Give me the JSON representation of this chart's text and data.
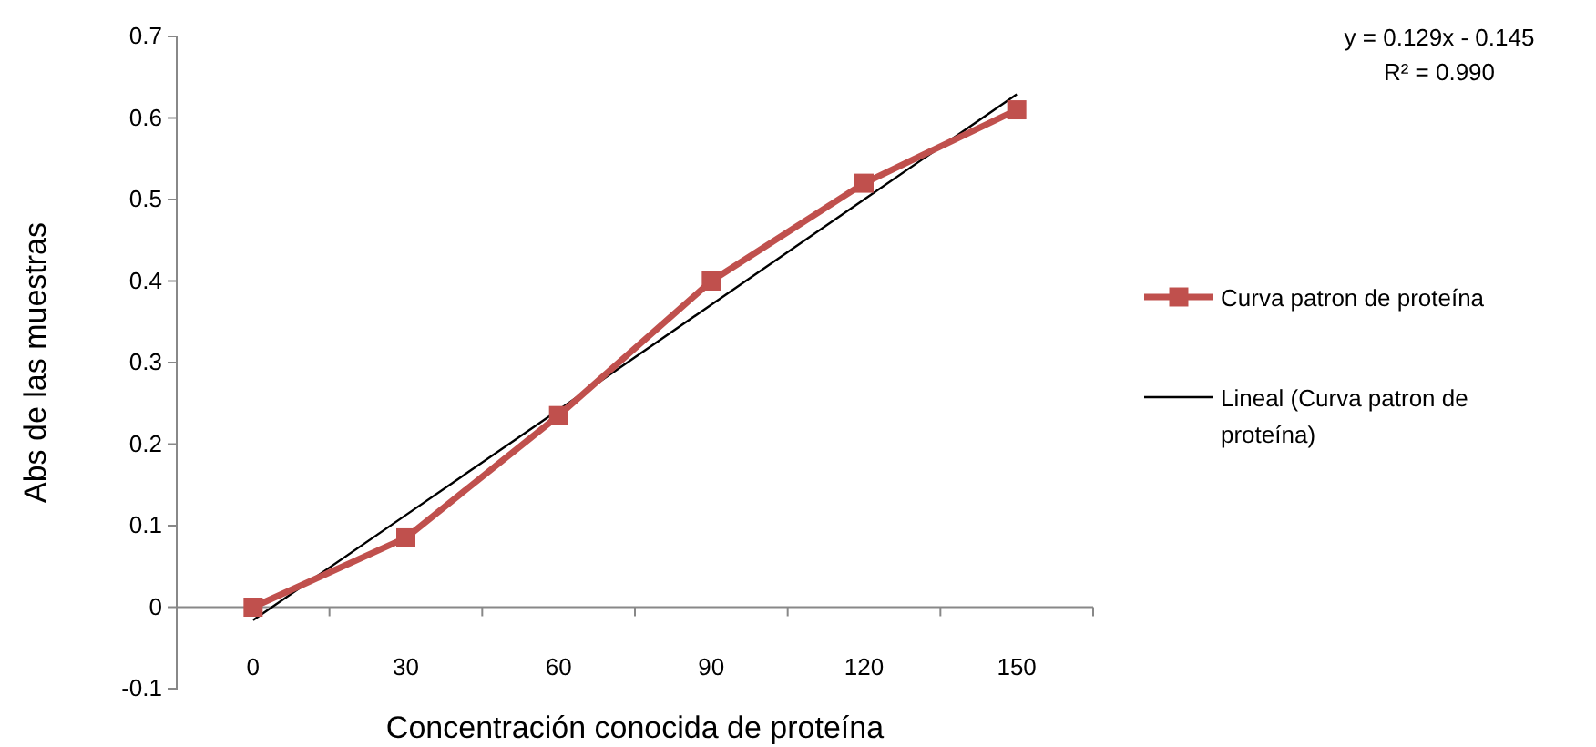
{
  "chart_data": {
    "type": "line",
    "xlabel": "Concentración conocida de proteína",
    "ylabel": "Abs de las muestras",
    "categories": [
      "0",
      "30",
      "60",
      "90",
      "120",
      "150"
    ],
    "series": [
      {
        "name": "Curva patron de proteína",
        "color": "#c0504d",
        "values": [
          0,
          0.085,
          0.235,
          0.4,
          0.52,
          0.61
        ],
        "marker": "square"
      },
      {
        "name": "Lineal (Curva patron de proteína)",
        "color": "#000000",
        "values": [
          -0.016,
          0.113,
          0.242,
          0.371,
          0.5,
          0.629
        ],
        "marker": "none"
      }
    ],
    "ylim": [
      -0.1,
      0.7
    ],
    "yticks": [
      -0.1,
      0,
      0.1,
      0.2,
      0.3,
      0.4,
      0.5,
      0.6,
      0.7
    ],
    "annotations": [
      "y = 0.129x - 0.145",
      "R² = 0.990"
    ],
    "legend": "right",
    "grid": false
  }
}
